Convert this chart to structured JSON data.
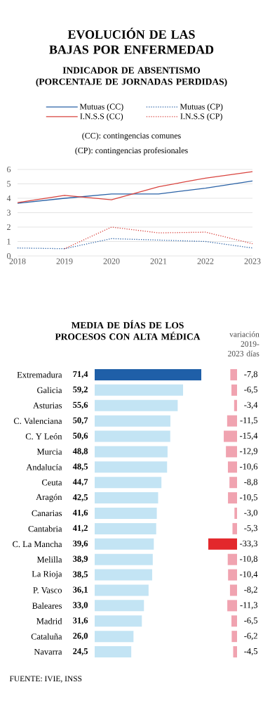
{
  "chart_data": [
    {
      "type": "line",
      "title": "EVOLUCIÓN DE LAS BAJAS POR ENFERMEDAD",
      "subtitle": "INDICADOR DE ABSENTISMO (PORCENTAJE DE JORNADAS PERDIDAS)",
      "x": [
        2018,
        2019,
        2020,
        2021,
        2022,
        2023
      ],
      "xlim": [
        2018,
        2023
      ],
      "xticks": [
        2018,
        2019,
        2020,
        2021,
        2022,
        2023
      ],
      "ylim": [
        0,
        6
      ],
      "yticks": [
        0,
        1,
        2,
        3,
        4,
        5,
        6
      ],
      "grid": "y",
      "legend": "top",
      "series": [
        {
          "name": "Mutuas (CC)",
          "color": "#2a62a6",
          "line_style": "solid",
          "values": [
            3.65,
            4.0,
            4.3,
            4.3,
            4.7,
            5.2
          ]
        },
        {
          "name": "Mutuas (CP)",
          "color": "#2a62a6",
          "line_style": "dotted",
          "values": [
            0.55,
            0.5,
            1.2,
            1.1,
            1.0,
            0.55
          ]
        },
        {
          "name": "I.N.S.S (CC)",
          "color": "#d9443f",
          "line_style": "solid",
          "values": [
            3.7,
            4.2,
            3.9,
            4.8,
            5.4,
            5.85
          ]
        },
        {
          "name": "I.N.S.S (CP)",
          "color": "#d9443f",
          "line_style": "dotted",
          "values": [
            null,
            0.5,
            2.0,
            1.6,
            1.65,
            0.85
          ]
        }
      ],
      "annotations": [
        "(CC): contingencias comunes",
        "(CP): contingencias profesionales"
      ]
    },
    {
      "type": "bar",
      "orientation": "horizontal",
      "title": "MEDIA DE DÍAS DE LOS PROCESOS CON ALTA MÉDICA",
      "value_labels": [
        "71,4",
        "59,2",
        "55,6",
        "50,7",
        "50,6",
        "48,8",
        "48,5",
        "44,7",
        "42,5",
        "41,6",
        "41,2",
        "39,6",
        "38,9",
        "38,5",
        "36,1",
        "33,0",
        "31,6",
        "26,0",
        "24,5"
      ],
      "categories": [
        "Extremadura",
        "Galicia",
        "Asturias",
        "C. Valenciana",
        "C. Y León",
        "Murcia",
        "Andalucía",
        "Ceuta",
        "Aragón",
        "Canarias",
        "Cantabria",
        "C. La Mancha",
        "Melilla",
        "La Rioja",
        "P. Vasco",
        "Baleares",
        "Madrid",
        "Cataluña",
        "Navarra"
      ],
      "values": [
        71.4,
        59.2,
        55.6,
        50.7,
        50.6,
        48.8,
        48.5,
        44.7,
        42.5,
        41.6,
        41.2,
        39.6,
        38.9,
        38.5,
        36.1,
        33.0,
        31.6,
        26.0,
        24.5
      ],
      "colors": [
        "#1f5fa8",
        "#c3e4f4",
        "#c3e4f4",
        "#c3e4f4",
        "#c3e4f4",
        "#c3e4f4",
        "#c3e4f4",
        "#c3e4f4",
        "#c3e4f4",
        "#c3e4f4",
        "#c3e4f4",
        "#c3e4f4",
        "#c3e4f4",
        "#c3e4f4",
        "#c3e4f4",
        "#c3e4f4",
        "#c3e4f4",
        "#c3e4f4",
        "#c3e4f4"
      ],
      "annotations": [
        "FUENTE: IVIE, INSS"
      ]
    },
    {
      "type": "bar",
      "orientation": "horizontal",
      "title": "variación 2019-2023 días",
      "value_labels": [
        "-7,8",
        "-6,5",
        "-3,4",
        "-11,5",
        "-15,4",
        "-12,9",
        "-10,6",
        "-8,8",
        "-10,5",
        "-3,0",
        "-5,3",
        "-33,3",
        "-10,8",
        "-10,4",
        "-8,2",
        "-11,3",
        "-6,5",
        "-6,2",
        "-4,5"
      ],
      "categories": [
        null,
        null,
        null,
        null,
        null,
        null,
        null,
        null,
        null,
        null,
        null,
        null,
        null,
        null,
        null,
        null,
        null,
        null,
        null
      ],
      "values": [
        -7.8,
        -6.5,
        -3.4,
        -11.5,
        -15.4,
        -12.9,
        -10.6,
        -8.8,
        -10.5,
        -3.0,
        -5.3,
        -33.3,
        -10.8,
        -10.4,
        -8.2,
        -11.3,
        -6.5,
        -6.2,
        -4.5
      ],
      "colors": [
        "#f0a3b0",
        "#f0a3b0",
        "#f0a3b0",
        "#f0a3b0",
        "#f0a3b0",
        "#f0a3b0",
        "#f0a3b0",
        "#f0a3b0",
        "#f0a3b0",
        "#f0a3b0",
        "#f0a3b0",
        "#e3282c",
        "#f0a3b0",
        "#f0a3b0",
        "#f0a3b0",
        "#f0a3b0",
        "#f0a3b0",
        "#f0a3b0",
        "#f0a3b0"
      ]
    }
  ]
}
